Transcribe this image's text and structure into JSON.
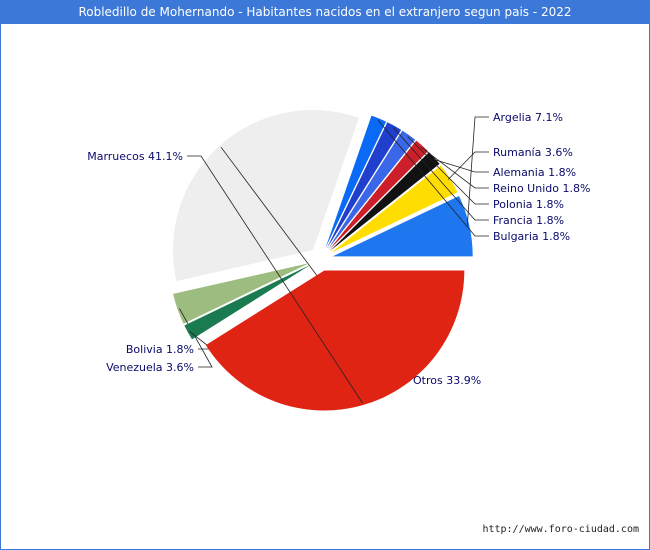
{
  "title": "Robledillo de Mohernando - Habitantes nacidos en el extranjero segun pais - 2022",
  "source_url": "http://www.foro-ciudad.com",
  "chart_data": {
    "type": "pie",
    "title": "Robledillo de Mohernando - Habitantes nacidos en el extranjero segun pais - 2022",
    "slices": [
      {
        "label": "Argelia",
        "value": 7.1,
        "text": "Argelia 7.1%",
        "color": "#1f77f0"
      },
      {
        "label": "Rumanía",
        "value": 3.6,
        "text": "Rumanía 3.6%",
        "color": "#ffdd00"
      },
      {
        "label": "Alemania",
        "value": 1.8,
        "text": "Alemania 1.8%",
        "color": "#111111"
      },
      {
        "label": "Reino Unido",
        "value": 1.8,
        "text": "Reino Unido 1.8%",
        "color": "#cc1f2a"
      },
      {
        "label": "Polonia",
        "value": 1.8,
        "text": "Polonia 1.8%",
        "color": "#3a66e8"
      },
      {
        "label": "Francia",
        "value": 1.8,
        "text": "Francia 1.8%",
        "color": "#1f3fcc"
      },
      {
        "label": "Bulgaria",
        "value": 1.8,
        "text": "Bulgaria 1.8%",
        "color": "#0a6af5"
      },
      {
        "label": "Otros",
        "value": 33.9,
        "text": "Otros 33.9%",
        "color": "#eeeeee"
      },
      {
        "label": "Venezuela",
        "value": 3.6,
        "text": "Venezuela 3.6%",
        "color": "#9dbd80"
      },
      {
        "label": "Bolivia",
        "value": 1.8,
        "text": "Bolivia 1.8%",
        "color": "#1a7a50"
      },
      {
        "label": "Marruecos",
        "value": 41.1,
        "text": "Marruecos 41.1%",
        "color": "#e02414"
      }
    ]
  }
}
